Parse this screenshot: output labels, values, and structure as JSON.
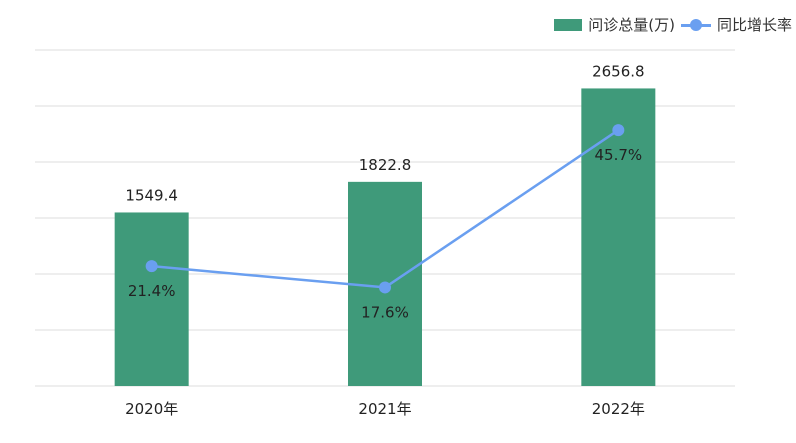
{
  "chart_data": {
    "type": "bar",
    "categories": [
      "2020年",
      "2021年",
      "2022年"
    ],
    "series": [
      {
        "name": "问诊总量(万)",
        "type": "bar",
        "values": [
          1549.4,
          1822.8,
          2656.8
        ],
        "labels": [
          "1549.4",
          "1822.8",
          "2656.8"
        ]
      },
      {
        "name": "同比增长率",
        "type": "line",
        "values": [
          21.4,
          17.6,
          45.7
        ],
        "labels": [
          "21.4%",
          "17.6%",
          "45.7%"
        ]
      }
    ],
    "ylim_left": [
      0,
      3000
    ],
    "ylim_right": [
      0,
      60
    ],
    "grid": true,
    "legend_position": "top-right"
  },
  "colors": {
    "bar": "#3f9a7a",
    "line": "#6a9ff0",
    "grid": "#dcdcdc",
    "text": "#222222"
  }
}
